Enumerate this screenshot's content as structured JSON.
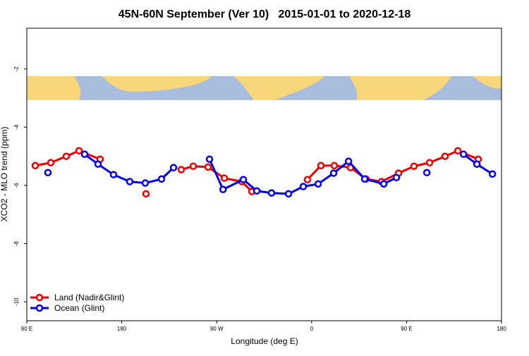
{
  "chart_data": {
    "type": "line",
    "title": "45N-60N September (Ver 10)   2015-01-01 to 2020-12-18",
    "x_label": "Longitude (deg E)",
    "y_label": "XCO2 - MLO trend (ppm)",
    "xlim": [
      90,
      540
    ],
    "ylim": [
      -10.65,
      -0.6
    ],
    "xticks": [
      {
        "value": 90,
        "label": "90 E"
      },
      {
        "value": 180,
        "label": "180"
      },
      {
        "value": 270,
        "label": "90 W"
      },
      {
        "value": 360,
        "label": "0"
      },
      {
        "value": 450,
        "label": "90 E"
      },
      {
        "value": 540,
        "label": "180"
      }
    ],
    "yticks": [
      -2,
      -4,
      -6,
      -8,
      -10
    ],
    "legend": "bottom-left",
    "series": [
      {
        "name": "Land (Nadir&Glint)",
        "color": "#ee0000",
        "x": [
          98,
          112.7,
          127.4,
          139.5,
          159.5,
          null,
          203,
          null,
          236.4,
          247.8,
          261.8,
          277.2,
          293.9,
          303.3,
          null,
          356,
          368.8,
          381.5,
          396.9,
          411.6,
          426.3,
          442.4,
          457,
          471.8,
          486.5,
          498.6,
          517.9
        ],
        "values": [
          -5.32,
          -5.22,
          -5.0,
          -4.81,
          -5.1,
          null,
          -6.29,
          null,
          -5.46,
          -5.34,
          -5.37,
          -5.75,
          -5.87,
          -6.21,
          null,
          -5.8,
          -5.32,
          -5.32,
          -5.39,
          -5.78,
          -5.87,
          -5.58,
          -5.34,
          -5.22,
          -5.0,
          -4.81,
          -5.1
        ]
      },
      {
        "name": "Ocean (Glint)",
        "color": "#0000ee",
        "x": [
          110,
          null,
          144.8,
          157.5,
          172.2,
          187.6,
          202.3,
          217.7,
          229.1,
          null,
          263.2,
          276,
          295.3,
          308,
          322,
          338.1,
          352.1,
          366.2,
          380.9,
          395,
          410.3,
          428.4,
          440.4,
          null,
          469.2,
          null,
          504,
          516.7,
          531.4
        ],
        "values": [
          -5.56,
          null,
          -4.93,
          -5.27,
          -5.63,
          -5.87,
          -5.92,
          -5.78,
          -5.39,
          null,
          -5.1,
          -6.14,
          -5.8,
          -6.19,
          -6.26,
          -6.29,
          -6.04,
          -5.95,
          -5.58,
          -5.17,
          -5.78,
          -5.95,
          -5.73,
          null,
          -5.56,
          null,
          -4.93,
          -5.27,
          -5.61
        ]
      }
    ]
  }
}
